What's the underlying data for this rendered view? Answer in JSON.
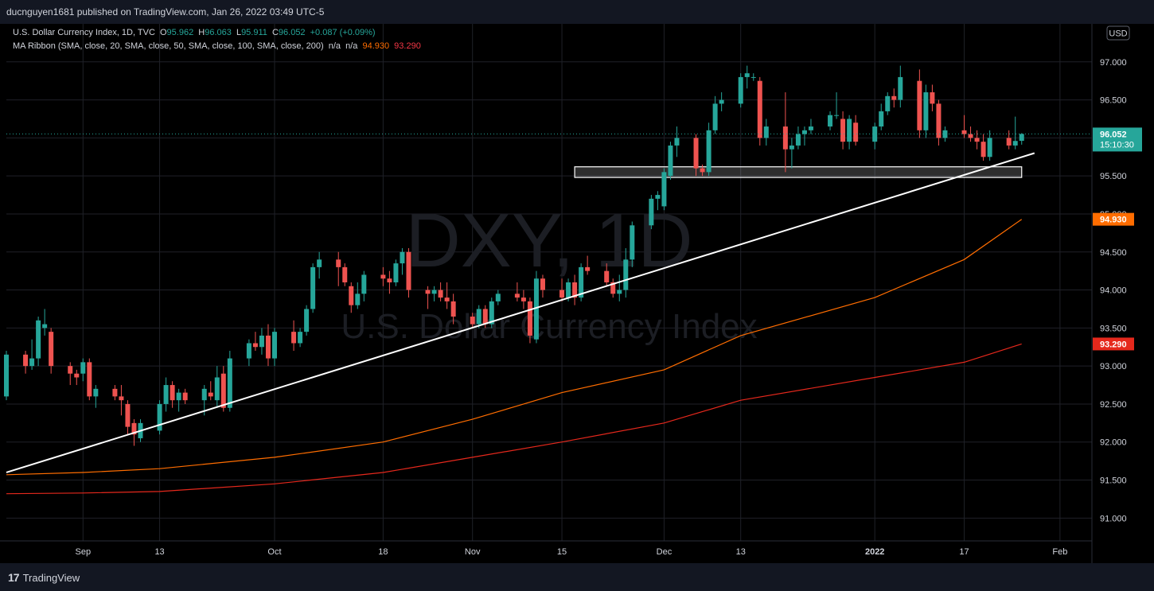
{
  "header": {
    "publisher_line": "ducnguyen1681 published on TradingView.com, Jan 26, 2022 03:49 UTC-5"
  },
  "footer": {
    "logo_glyph": "17",
    "brand": "TradingView"
  },
  "legend": {
    "symbol": "U.S. Dollar Currency Index, 1D, TVC",
    "o_label": "O",
    "o_value": "95.962",
    "h_label": "H",
    "h_value": "96.063",
    "l_label": "L",
    "l_value": "95.911",
    "c_label": "C",
    "c_value": "96.052",
    "change": "+0.087 (+0.09%)",
    "ma_label": "MA Ribbon (SMA, close, 20, SMA, close, 50, SMA, close, 100, SMA, close, 200)",
    "ma_na1": "n/a",
    "ma_na2": "n/a",
    "ma100_value": "94.930",
    "ma200_value": "93.290"
  },
  "colors": {
    "up": "#26a69a",
    "down": "#ef5350",
    "ma100": "#ff6d00",
    "ma200": "#e5281c",
    "trendline": "#ffffff",
    "background": "#000000"
  },
  "chart_data": {
    "type": "candlestick",
    "title": "",
    "watermark_ticker": "DXY, 1D",
    "watermark_name": "U.S. Dollar Currency Index",
    "currency_label": "USD",
    "y_range": [
      90.7,
      97.5
    ],
    "y_ticks": [
      "97.000",
      "96.500",
      "96.000",
      "95.500",
      "95.000",
      "94.500",
      "94.000",
      "93.500",
      "93.000",
      "92.500",
      "92.000",
      "91.500",
      "91.000"
    ],
    "y_tick_values": [
      97.0,
      96.5,
      96.0,
      95.5,
      95.0,
      94.5,
      94.0,
      93.5,
      93.0,
      92.5,
      92.0,
      91.5,
      91.0
    ],
    "x_tick_labels": [
      "Sep",
      "13",
      "Oct",
      "18",
      "Nov",
      "15",
      "Dec",
      "13",
      "2022",
      "17",
      "Feb"
    ],
    "x_tick_dates": [
      "2021-09-01",
      "2021-09-13",
      "2021-10-01",
      "2021-10-18",
      "2021-11-01",
      "2021-11-15",
      "2021-12-01",
      "2021-12-13",
      "2022-01-03",
      "2022-01-17",
      "2022-02-01"
    ],
    "x_range": [
      "2021-08-20",
      "2022-02-06"
    ],
    "last_price": "96.052",
    "countdown": "15:10:30",
    "last_price_value": 96.052,
    "ma100_label": "94.930",
    "ma100_last": 94.93,
    "ma200_label": "93.290",
    "ma200_last": 93.29,
    "candles": [
      {
        "d": "2021-08-20",
        "o": 92.6,
        "h": 93.2,
        "l": 92.55,
        "c": 93.15
      },
      {
        "d": "2021-08-23",
        "o": 93.15,
        "h": 93.2,
        "l": 92.9,
        "c": 93.0
      },
      {
        "d": "2021-08-24",
        "o": 93.0,
        "h": 93.35,
        "l": 92.95,
        "c": 93.1
      },
      {
        "d": "2021-08-25",
        "o": 93.1,
        "h": 93.65,
        "l": 93.0,
        "c": 93.6
      },
      {
        "d": "2021-08-26",
        "o": 93.5,
        "h": 93.75,
        "l": 93.4,
        "c": 93.55
      },
      {
        "d": "2021-08-27",
        "o": 93.45,
        "h": 93.5,
        "l": 92.9,
        "c": 93.0
      },
      {
        "d": "2021-08-30",
        "o": 93.0,
        "h": 93.05,
        "l": 92.75,
        "c": 92.9
      },
      {
        "d": "2021-08-31",
        "o": 92.9,
        "h": 92.95,
        "l": 92.75,
        "c": 92.85
      },
      {
        "d": "2021-09-01",
        "o": 92.9,
        "h": 93.1,
        "l": 92.8,
        "c": 93.05
      },
      {
        "d": "2021-09-02",
        "o": 93.05,
        "h": 93.1,
        "l": 92.55,
        "c": 92.6
      },
      {
        "d": "2021-09-03",
        "o": 92.6,
        "h": 92.75,
        "l": 92.45,
        "c": 92.7
      },
      {
        "d": "2021-09-06",
        "o": 92.7,
        "h": 92.75,
        "l": 92.55,
        "c": 92.6
      },
      {
        "d": "2021-09-07",
        "o": 92.6,
        "h": 92.75,
        "l": 92.35,
        "c": 92.55
      },
      {
        "d": "2021-09-08",
        "o": 92.5,
        "h": 92.55,
        "l": 92.1,
        "c": 92.2
      },
      {
        "d": "2021-09-09",
        "o": 92.25,
        "h": 92.3,
        "l": 91.95,
        "c": 92.1
      },
      {
        "d": "2021-09-10",
        "o": 92.05,
        "h": 92.3,
        "l": 92.0,
        "c": 92.25
      },
      {
        "d": "2021-09-13",
        "o": 92.15,
        "h": 92.55,
        "l": 92.1,
        "c": 92.5
      },
      {
        "d": "2021-09-14",
        "o": 92.5,
        "h": 92.85,
        "l": 92.4,
        "c": 92.75
      },
      {
        "d": "2021-09-15",
        "o": 92.75,
        "h": 92.8,
        "l": 92.45,
        "c": 92.55
      },
      {
        "d": "2021-09-16",
        "o": 92.55,
        "h": 92.7,
        "l": 92.4,
        "c": 92.65
      },
      {
        "d": "2021-09-17",
        "o": 92.65,
        "h": 92.7,
        "l": 92.5,
        "c": 92.55
      },
      {
        "d": "2021-09-20",
        "o": 92.55,
        "h": 92.75,
        "l": 92.35,
        "c": 92.7
      },
      {
        "d": "2021-09-21",
        "o": 92.65,
        "h": 92.8,
        "l": 92.55,
        "c": 92.6
      },
      {
        "d": "2021-09-22",
        "o": 92.55,
        "h": 93.0,
        "l": 92.45,
        "c": 92.85
      },
      {
        "d": "2021-09-23",
        "o": 92.9,
        "h": 93.0,
        "l": 92.4,
        "c": 92.45
      },
      {
        "d": "2021-09-24",
        "o": 92.45,
        "h": 93.2,
        "l": 92.4,
        "c": 93.1
      },
      {
        "d": "2021-09-27",
        "o": 93.1,
        "h": 93.35,
        "l": 93.0,
        "c": 93.3
      },
      {
        "d": "2021-09-28",
        "o": 93.3,
        "h": 93.45,
        "l": 93.2,
        "c": 93.25
      },
      {
        "d": "2021-09-29",
        "o": 93.25,
        "h": 93.5,
        "l": 93.15,
        "c": 93.4
      },
      {
        "d": "2021-09-30",
        "o": 93.4,
        "h": 93.55,
        "l": 93.0,
        "c": 93.1
      },
      {
        "d": "2021-10-01",
        "o": 93.1,
        "h": 93.5,
        "l": 93.0,
        "c": 93.45
      },
      {
        "d": "2021-10-04",
        "o": 93.45,
        "h": 93.6,
        "l": 93.2,
        "c": 93.3
      },
      {
        "d": "2021-10-05",
        "o": 93.3,
        "h": 93.5,
        "l": 93.25,
        "c": 93.45
      },
      {
        "d": "2021-10-06",
        "o": 93.45,
        "h": 93.8,
        "l": 93.4,
        "c": 93.75
      },
      {
        "d": "2021-10-07",
        "o": 93.75,
        "h": 94.35,
        "l": 93.7,
        "c": 94.3
      },
      {
        "d": "2021-10-08",
        "o": 94.3,
        "h": 94.5,
        "l": 94.15,
        "c": 94.4
      },
      {
        "d": "2021-10-11",
        "o": 94.4,
        "h": 94.5,
        "l": 94.05,
        "c": 94.3
      },
      {
        "d": "2021-10-12",
        "o": 94.3,
        "h": 94.35,
        "l": 94.05,
        "c": 94.1
      },
      {
        "d": "2021-10-13",
        "o": 94.05,
        "h": 94.1,
        "l": 93.7,
        "c": 93.8
      },
      {
        "d": "2021-10-14",
        "o": 93.8,
        "h": 94.1,
        "l": 93.75,
        "c": 93.95
      },
      {
        "d": "2021-10-15",
        "o": 93.95,
        "h": 94.25,
        "l": 93.85,
        "c": 94.2
      },
      {
        "d": "2021-10-18",
        "o": 94.2,
        "h": 94.3,
        "l": 94.05,
        "c": 94.15
      },
      {
        "d": "2021-10-19",
        "o": 94.15,
        "h": 94.25,
        "l": 93.95,
        "c": 94.1
      },
      {
        "d": "2021-10-20",
        "o": 94.1,
        "h": 94.4,
        "l": 94.05,
        "c": 94.35
      },
      {
        "d": "2021-10-21",
        "o": 94.35,
        "h": 94.55,
        "l": 94.2,
        "c": 94.5
      },
      {
        "d": "2021-10-22",
        "o": 94.5,
        "h": 94.55,
        "l": 93.9,
        "c": 94.0
      },
      {
        "d": "2021-10-25",
        "o": 94.0,
        "h": 94.05,
        "l": 93.75,
        "c": 93.95
      },
      {
        "d": "2021-10-26",
        "o": 93.95,
        "h": 94.05,
        "l": 93.85,
        "c": 94.0
      },
      {
        "d": "2021-10-27",
        "o": 94.0,
        "h": 94.1,
        "l": 93.85,
        "c": 93.9
      },
      {
        "d": "2021-10-28",
        "o": 93.9,
        "h": 94.1,
        "l": 93.75,
        "c": 93.85
      },
      {
        "d": "2021-10-29",
        "o": 93.85,
        "h": 93.95,
        "l": 93.55,
        "c": 93.65
      },
      {
        "d": "2021-11-01",
        "o": 93.65,
        "h": 93.7,
        "l": 93.5,
        "c": 93.55
      },
      {
        "d": "2021-11-02",
        "o": 93.55,
        "h": 93.8,
        "l": 93.5,
        "c": 93.75
      },
      {
        "d": "2021-11-03",
        "o": 93.75,
        "h": 93.8,
        "l": 93.5,
        "c": 93.55
      },
      {
        "d": "2021-11-04",
        "o": 93.55,
        "h": 93.9,
        "l": 93.5,
        "c": 93.85
      },
      {
        "d": "2021-11-05",
        "o": 93.85,
        "h": 94.0,
        "l": 93.8,
        "c": 93.95
      },
      {
        "d": "2021-11-08",
        "o": 93.95,
        "h": 94.1,
        "l": 93.85,
        "c": 93.9
      },
      {
        "d": "2021-11-09",
        "o": 93.9,
        "h": 94.0,
        "l": 93.75,
        "c": 93.85
      },
      {
        "d": "2021-11-10",
        "o": 93.85,
        "h": 93.9,
        "l": 93.3,
        "c": 93.4
      },
      {
        "d": "2021-11-11",
        "o": 93.35,
        "h": 94.25,
        "l": 93.3,
        "c": 94.15
      },
      {
        "d": "2021-11-12",
        "o": 94.15,
        "h": 94.2,
        "l": 93.9,
        "c": 94.0
      },
      {
        "d": "2021-11-15",
        "o": 94.0,
        "h": 94.15,
        "l": 93.85,
        "c": 93.9
      },
      {
        "d": "2021-11-16",
        "o": 93.9,
        "h": 94.15,
        "l": 93.85,
        "c": 94.1
      },
      {
        "d": "2021-11-17",
        "o": 94.1,
        "h": 94.2,
        "l": 93.8,
        "c": 93.9
      },
      {
        "d": "2021-11-18",
        "o": 93.9,
        "h": 94.35,
        "l": 93.85,
        "c": 94.3
      },
      {
        "d": "2021-11-19",
        "o": 94.3,
        "h": 94.45,
        "l": 94.2,
        "c": 94.25
      },
      {
        "d": "2021-11-22",
        "o": 94.25,
        "h": 94.35,
        "l": 94.05,
        "c": 94.1
      },
      {
        "d": "2021-11-23",
        "o": 94.1,
        "h": 94.15,
        "l": 93.9,
        "c": 93.95
      },
      {
        "d": "2021-11-24",
        "o": 93.95,
        "h": 94.2,
        "l": 93.85,
        "c": 94.0
      },
      {
        "d": "2021-11-25",
        "o": 94.0,
        "h": 94.55,
        "l": 93.9,
        "c": 94.4
      },
      {
        "d": "2021-11-26",
        "o": 94.4,
        "h": 94.9,
        "l": 94.3,
        "c": 94.85
      },
      {
        "d": "2021-11-29",
        "o": 94.85,
        "h": 95.25,
        "l": 94.8,
        "c": 95.2
      },
      {
        "d": "2021-11-30",
        "o": 95.2,
        "h": 95.3,
        "l": 95.05,
        "c": 95.25
      },
      {
        "d": "2021-12-01",
        "o": 95.1,
        "h": 95.6,
        "l": 95.05,
        "c": 95.55
      },
      {
        "d": "2021-12-02",
        "o": 95.5,
        "h": 95.95,
        "l": 95.45,
        "c": 95.9
      },
      {
        "d": "2021-12-03",
        "o": 95.9,
        "h": 96.15,
        "l": 95.75,
        "c": 96.0
      },
      {
        "d": "2021-12-06",
        "o": 96.0,
        "h": 96.05,
        "l": 95.5,
        "c": 95.6
      },
      {
        "d": "2021-12-07",
        "o": 95.6,
        "h": 95.65,
        "l": 95.5,
        "c": 95.55
      },
      {
        "d": "2021-12-08",
        "o": 95.55,
        "h": 96.2,
        "l": 95.5,
        "c": 96.1
      },
      {
        "d": "2021-12-09",
        "o": 96.1,
        "h": 96.55,
        "l": 96.05,
        "c": 96.45
      },
      {
        "d": "2021-12-10",
        "o": 96.45,
        "h": 96.6,
        "l": 96.35,
        "c": 96.5
      },
      {
        "d": "2021-12-13",
        "o": 96.45,
        "h": 96.85,
        "l": 96.4,
        "c": 96.8
      },
      {
        "d": "2021-12-14",
        "o": 96.8,
        "h": 96.95,
        "l": 96.65,
        "c": 96.85
      },
      {
        "d": "2021-12-15",
        "o": 96.8,
        "h": 96.85,
        "l": 96.75,
        "c": 96.8
      },
      {
        "d": "2021-12-16",
        "o": 96.75,
        "h": 96.8,
        "l": 95.9,
        "c": 96.0
      },
      {
        "d": "2021-12-17",
        "o": 96.0,
        "h": 96.25,
        "l": 95.9,
        "c": 96.15
      },
      {
        "d": "2021-12-20",
        "o": 96.15,
        "h": 96.6,
        "l": 95.55,
        "c": 95.85
      },
      {
        "d": "2021-12-21",
        "o": 95.85,
        "h": 96.0,
        "l": 95.6,
        "c": 95.9
      },
      {
        "d": "2021-12-22",
        "o": 95.9,
        "h": 96.15,
        "l": 95.85,
        "c": 96.05
      },
      {
        "d": "2021-12-23",
        "o": 96.05,
        "h": 96.15,
        "l": 95.9,
        "c": 96.1
      },
      {
        "d": "2021-12-24",
        "o": 96.1,
        "h": 96.25,
        "l": 96.05,
        "c": 96.15
      },
      {
        "d": "2021-12-27",
        "o": 96.15,
        "h": 96.35,
        "l": 96.1,
        "c": 96.3
      },
      {
        "d": "2021-12-28",
        "o": 96.3,
        "h": 96.6,
        "l": 96.25,
        "c": 96.3
      },
      {
        "d": "2021-12-29",
        "o": 96.25,
        "h": 96.35,
        "l": 95.85,
        "c": 95.95
      },
      {
        "d": "2021-12-30",
        "o": 95.95,
        "h": 96.3,
        "l": 95.85,
        "c": 96.25
      },
      {
        "d": "2021-12-31",
        "o": 96.2,
        "h": 96.3,
        "l": 95.9,
        "c": 95.95
      },
      {
        "d": "2022-01-03",
        "o": 95.95,
        "h": 96.2,
        "l": 95.85,
        "c": 96.15
      },
      {
        "d": "2022-01-04",
        "o": 96.15,
        "h": 96.45,
        "l": 96.1,
        "c": 96.35
      },
      {
        "d": "2022-01-05",
        "o": 96.35,
        "h": 96.6,
        "l": 96.3,
        "c": 96.55
      },
      {
        "d": "2022-01-06",
        "o": 96.55,
        "h": 96.65,
        "l": 96.4,
        "c": 96.5
      },
      {
        "d": "2022-01-07",
        "o": 96.5,
        "h": 96.95,
        "l": 96.4,
        "c": 96.8
      },
      {
        "d": "2022-01-10",
        "o": 96.75,
        "h": 96.9,
        "l": 96.0,
        "c": 96.1
      },
      {
        "d": "2022-01-11",
        "o": 96.1,
        "h": 96.7,
        "l": 96.0,
        "c": 96.6
      },
      {
        "d": "2022-01-12",
        "o": 96.6,
        "h": 96.7,
        "l": 96.35,
        "c": 96.45
      },
      {
        "d": "2022-01-13",
        "o": 96.45,
        "h": 96.5,
        "l": 95.9,
        "c": 96.0
      },
      {
        "d": "2022-01-14",
        "o": 96.0,
        "h": 96.15,
        "l": 95.95,
        "c": 96.1
      },
      {
        "d": "2022-01-17",
        "o": 96.1,
        "h": 96.3,
        "l": 96.0,
        "c": 96.05
      },
      {
        "d": "2022-01-18",
        "o": 96.05,
        "h": 96.15,
        "l": 95.95,
        "c": 96.0
      },
      {
        "d": "2022-01-19",
        "o": 96.0,
        "h": 96.1,
        "l": 95.85,
        "c": 95.95
      },
      {
        "d": "2022-01-20",
        "o": 95.95,
        "h": 96.05,
        "l": 95.7,
        "c": 95.75
      },
      {
        "d": "2022-01-21",
        "o": 95.75,
        "h": 96.1,
        "l": 95.7,
        "c": 96.0
      },
      {
        "d": "2022-01-24",
        "o": 96.0,
        "h": 96.1,
        "l": 95.85,
        "c": 95.9
      },
      {
        "d": "2022-01-25",
        "o": 95.9,
        "h": 96.28,
        "l": 95.85,
        "c": 95.96
      },
      {
        "d": "2022-01-26",
        "o": 95.962,
        "h": 96.063,
        "l": 95.911,
        "c": 96.052
      }
    ],
    "ma100": [
      {
        "d": "2021-08-20",
        "v": 91.57
      },
      {
        "d": "2021-09-01",
        "v": 91.6
      },
      {
        "d": "2021-09-13",
        "v": 91.65
      },
      {
        "d": "2021-10-01",
        "v": 91.8
      },
      {
        "d": "2021-10-18",
        "v": 92.0
      },
      {
        "d": "2021-11-01",
        "v": 92.3
      },
      {
        "d": "2021-11-15",
        "v": 92.65
      },
      {
        "d": "2021-12-01",
        "v": 92.95
      },
      {
        "d": "2021-12-13",
        "v": 93.4
      },
      {
        "d": "2022-01-03",
        "v": 93.9
      },
      {
        "d": "2022-01-17",
        "v": 94.4
      },
      {
        "d": "2022-01-26",
        "v": 94.93
      }
    ],
    "ma200": [
      {
        "d": "2021-08-20",
        "v": 91.32
      },
      {
        "d": "2021-09-01",
        "v": 91.33
      },
      {
        "d": "2021-09-13",
        "v": 91.35
      },
      {
        "d": "2021-10-01",
        "v": 91.45
      },
      {
        "d": "2021-10-18",
        "v": 91.6
      },
      {
        "d": "2021-11-01",
        "v": 91.8
      },
      {
        "d": "2021-11-15",
        "v": 92.0
      },
      {
        "d": "2021-12-01",
        "v": 92.25
      },
      {
        "d": "2021-12-13",
        "v": 92.55
      },
      {
        "d": "2022-01-03",
        "v": 92.85
      },
      {
        "d": "2022-01-17",
        "v": 93.05
      },
      {
        "d": "2022-01-26",
        "v": 93.29
      }
    ],
    "trendline": [
      {
        "d": "2021-08-20",
        "v": 91.6
      },
      {
        "d": "2022-01-28",
        "v": 95.8
      }
    ],
    "zone": {
      "from": "2021-11-17",
      "to": "2022-01-26",
      "low": 95.48,
      "high": 95.62
    }
  }
}
